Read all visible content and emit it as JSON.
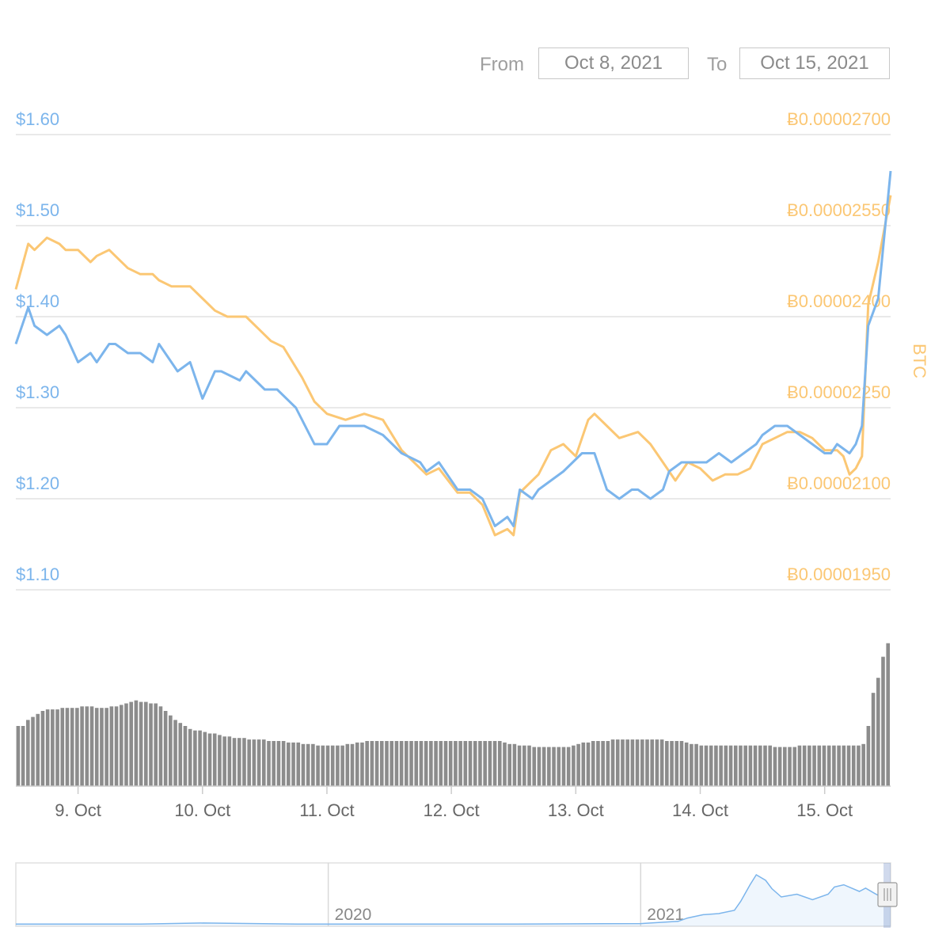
{
  "range_selector": {
    "from_label": "From",
    "from_value": "Oct 8, 2021",
    "to_label": "To",
    "to_value": "Oct 15, 2021"
  },
  "colors": {
    "usd_line": "#7cb5ec",
    "btc_line": "#fbc774",
    "volume_bar": "#8c8c8c",
    "grid": "#e2e2e2"
  },
  "chart_data": [
    {
      "type": "line",
      "y_axis_left": {
        "ticks": [
          "$1.10",
          "$1.20",
          "$1.30",
          "$1.40",
          "$1.50",
          "$1.60"
        ],
        "range": [
          1.1,
          1.6
        ]
      },
      "y_axis_right": {
        "label": "BTC",
        "ticks": [
          "Ƀ0.00001950",
          "Ƀ0.00002100",
          "Ƀ0.00002250",
          "Ƀ0.00002400",
          "Ƀ0.00002550",
          "Ƀ0.00002700"
        ],
        "range": [
          1.95e-05,
          2.7e-05
        ]
      },
      "x_axis": {
        "ticks": [
          "9. Oct",
          "10. Oct",
          "11. Oct",
          "12. Oct",
          "13. Oct",
          "14. Oct",
          "15. Oct"
        ],
        "range": [
          8.5,
          15.53
        ]
      },
      "series": [
        {
          "axis": "left",
          "x": [
            8.5,
            8.6,
            8.65,
            8.75,
            8.85,
            8.9,
            9.0,
            9.1,
            9.15,
            9.25,
            9.3,
            9.4,
            9.5,
            9.6,
            9.65,
            9.75,
            9.8,
            9.9,
            10.0,
            10.1,
            10.15,
            10.3,
            10.35,
            10.5,
            10.6,
            10.75,
            10.9,
            11.0,
            11.1,
            11.15,
            11.3,
            11.45,
            11.6,
            11.75,
            11.8,
            11.9,
            12.05,
            12.15,
            12.25,
            12.35,
            12.45,
            12.5,
            12.55,
            12.65,
            12.7,
            12.8,
            12.9,
            13.05,
            13.15,
            13.25,
            13.35,
            13.45,
            13.5,
            13.6,
            13.7,
            13.75,
            13.85,
            13.95,
            14.05,
            14.15,
            14.25,
            14.35,
            14.45,
            14.5,
            14.6,
            14.7,
            14.8,
            14.9,
            15.0,
            15.05,
            15.1,
            15.2,
            15.25,
            15.3,
            15.35,
            15.43,
            15.53
          ],
          "values": [
            1.37,
            1.41,
            1.39,
            1.38,
            1.39,
            1.38,
            1.35,
            1.36,
            1.35,
            1.37,
            1.37,
            1.36,
            1.36,
            1.35,
            1.37,
            1.35,
            1.34,
            1.35,
            1.31,
            1.34,
            1.34,
            1.33,
            1.34,
            1.32,
            1.32,
            1.3,
            1.26,
            1.26,
            1.28,
            1.28,
            1.28,
            1.27,
            1.25,
            1.24,
            1.23,
            1.24,
            1.21,
            1.21,
            1.2,
            1.17,
            1.18,
            1.17,
            1.21,
            1.2,
            1.21,
            1.22,
            1.23,
            1.25,
            1.25,
            1.21,
            1.2,
            1.21,
            1.21,
            1.2,
            1.21,
            1.23,
            1.24,
            1.24,
            1.24,
            1.25,
            1.24,
            1.25,
            1.26,
            1.27,
            1.28,
            1.28,
            1.27,
            1.26,
            1.25,
            1.25,
            1.26,
            1.25,
            1.26,
            1.28,
            1.39,
            1.42,
            1.56
          ]
        },
        {
          "axis": "right",
          "x": [
            8.5,
            8.6,
            8.65,
            8.75,
            8.85,
            8.9,
            9.0,
            9.1,
            9.15,
            9.25,
            9.3,
            9.4,
            9.5,
            9.6,
            9.65,
            9.75,
            9.8,
            9.9,
            10.0,
            10.1,
            10.2,
            10.35,
            10.45,
            10.55,
            10.65,
            10.8,
            10.9,
            11.0,
            11.15,
            11.3,
            11.45,
            11.6,
            11.75,
            11.8,
            11.9,
            12.05,
            12.15,
            12.25,
            12.35,
            12.45,
            12.5,
            12.55,
            12.65,
            12.7,
            12.8,
            12.9,
            13.0,
            13.1,
            13.15,
            13.25,
            13.35,
            13.5,
            13.6,
            13.7,
            13.8,
            13.9,
            14.0,
            14.1,
            14.2,
            14.3,
            14.4,
            14.5,
            14.6,
            14.7,
            14.8,
            14.9,
            15.0,
            15.1,
            15.15,
            15.2,
            15.25,
            15.3,
            15.35,
            15.43,
            15.53
          ],
          "values": [
            2.445e-05,
            2.52e-05,
            2.51e-05,
            2.53e-05,
            2.52e-05,
            2.51e-05,
            2.51e-05,
            2.49e-05,
            2.5e-05,
            2.51e-05,
            2.5e-05,
            2.48e-05,
            2.47e-05,
            2.47e-05,
            2.46e-05,
            2.45e-05,
            2.45e-05,
            2.45e-05,
            2.43e-05,
            2.41e-05,
            2.4e-05,
            2.4e-05,
            2.38e-05,
            2.36e-05,
            2.35e-05,
            2.3e-05,
            2.26e-05,
            2.24e-05,
            2.23e-05,
            2.24e-05,
            2.23e-05,
            2.18e-05,
            2.15e-05,
            2.14e-05,
            2.15e-05,
            2.11e-05,
            2.11e-05,
            2.09e-05,
            2.04e-05,
            2.05e-05,
            2.04e-05,
            2.11e-05,
            2.13e-05,
            2.14e-05,
            2.18e-05,
            2.19e-05,
            2.17e-05,
            2.23e-05,
            2.24e-05,
            2.22e-05,
            2.2e-05,
            2.21e-05,
            2.19e-05,
            2.16e-05,
            2.13e-05,
            2.16e-05,
            2.15e-05,
            2.13e-05,
            2.14e-05,
            2.14e-05,
            2.15e-05,
            2.19e-05,
            2.2e-05,
            2.21e-05,
            2.21e-05,
            2.2e-05,
            2.18e-05,
            2.18e-05,
            2.17e-05,
            2.14e-05,
            2.15e-05,
            2.17e-05,
            2.42e-05,
            2.49e-05,
            2.6e-05
          ]
        }
      ]
    },
    {
      "type": "bar",
      "x_range": [
        8.5,
        15.53
      ],
      "bar_count": 170,
      "relative_values": [
        0.4,
        0.4,
        0.44,
        0.46,
        0.48,
        0.5,
        0.51,
        0.51,
        0.51,
        0.52,
        0.52,
        0.52,
        0.52,
        0.53,
        0.53,
        0.53,
        0.52,
        0.52,
        0.52,
        0.53,
        0.53,
        0.54,
        0.55,
        0.56,
        0.57,
        0.56,
        0.56,
        0.55,
        0.55,
        0.53,
        0.5,
        0.47,
        0.44,
        0.42,
        0.4,
        0.38,
        0.37,
        0.37,
        0.36,
        0.35,
        0.35,
        0.34,
        0.33,
        0.33,
        0.32,
        0.32,
        0.32,
        0.31,
        0.31,
        0.31,
        0.31,
        0.3,
        0.3,
        0.3,
        0.3,
        0.29,
        0.29,
        0.29,
        0.28,
        0.28,
        0.28,
        0.27,
        0.27,
        0.27,
        0.27,
        0.27,
        0.27,
        0.28,
        0.28,
        0.29,
        0.29,
        0.3,
        0.3,
        0.3,
        0.3,
        0.3,
        0.3,
        0.3,
        0.3,
        0.3,
        0.3,
        0.3,
        0.3,
        0.3,
        0.3,
        0.3,
        0.3,
        0.3,
        0.3,
        0.3,
        0.3,
        0.3,
        0.3,
        0.3,
        0.3,
        0.3,
        0.3,
        0.3,
        0.3,
        0.29,
        0.28,
        0.28,
        0.27,
        0.27,
        0.27,
        0.26,
        0.26,
        0.26,
        0.26,
        0.26,
        0.26,
        0.26,
        0.26,
        0.27,
        0.28,
        0.29,
        0.29,
        0.3,
        0.3,
        0.3,
        0.3,
        0.31,
        0.31,
        0.31,
        0.31,
        0.31,
        0.31,
        0.31,
        0.31,
        0.31,
        0.31,
        0.31,
        0.3,
        0.3,
        0.3,
        0.3,
        0.29,
        0.28,
        0.28,
        0.27,
        0.27,
        0.27,
        0.27,
        0.27,
        0.27,
        0.27,
        0.27,
        0.27,
        0.27,
        0.27,
        0.27,
        0.27,
        0.27,
        0.27,
        0.26,
        0.26,
        0.26,
        0.26,
        0.26,
        0.27,
        0.27,
        0.27,
        0.27,
        0.27,
        0.27,
        0.27,
        0.27,
        0.27,
        0.27,
        0.27,
        0.27,
        0.27,
        0.28,
        0.4,
        0.62,
        0.72,
        0.86,
        0.95
      ]
    },
    {
      "type": "area",
      "role": "navigator",
      "x_ticks": [
        "2020",
        "2021"
      ],
      "x_range": [
        2019.0,
        2021.8
      ],
      "x": [
        2019.0,
        2019.4,
        2019.6,
        2019.9,
        2020.2,
        2020.6,
        2021.0,
        2021.12,
        2021.15,
        2021.2,
        2021.25,
        2021.3,
        2021.32,
        2021.35,
        2021.37,
        2021.4,
        2021.42,
        2021.45,
        2021.5,
        2021.55,
        2021.6,
        2021.62,
        2021.65,
        2021.7,
        2021.72,
        2021.75,
        2021.77,
        2021.8
      ],
      "values": [
        0.01,
        0.01,
        0.03,
        0.01,
        0.01,
        0.01,
        0.02,
        0.06,
        0.12,
        0.18,
        0.2,
        0.26,
        0.42,
        0.72,
        0.9,
        0.8,
        0.65,
        0.5,
        0.55,
        0.45,
        0.55,
        0.68,
        0.72,
        0.6,
        0.66,
        0.56,
        0.5,
        0.42
      ]
    }
  ]
}
